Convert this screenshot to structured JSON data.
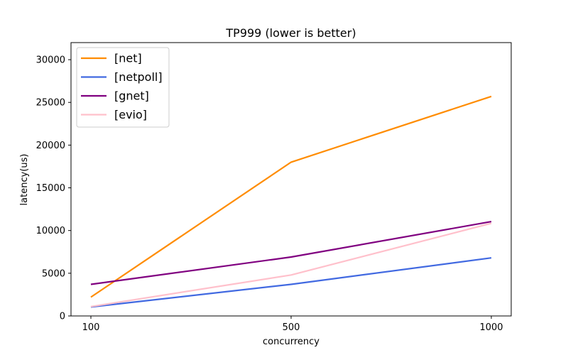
{
  "chart_data": {
    "type": "line",
    "title": "TP999 (lower is better)",
    "xlabel": "concurrency",
    "ylabel": "latency(us)",
    "categories": [
      "100",
      "500",
      "1000"
    ],
    "ylim": [
      0,
      32000
    ],
    "yticks": [
      0,
      5000,
      10000,
      15000,
      20000,
      25000,
      30000
    ],
    "legend_position": "top-left",
    "grid": false,
    "series": [
      {
        "name": "[net]",
        "color": "#ff8c00",
        "values": [
          2200,
          18000,
          25700
        ]
      },
      {
        "name": "[netpoll]",
        "color": "#4169e1",
        "values": [
          1050,
          3700,
          6800
        ]
      },
      {
        "name": "[gnet]",
        "color": "#800080",
        "values": [
          3700,
          6900,
          11050
        ]
      },
      {
        "name": "[evio]",
        "color": "#ffc0cb",
        "values": [
          1100,
          4800,
          10850
        ]
      }
    ]
  }
}
